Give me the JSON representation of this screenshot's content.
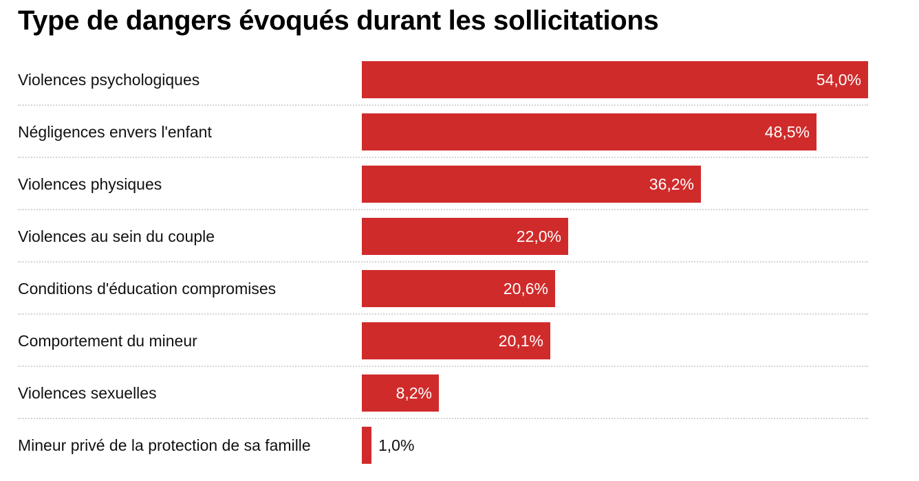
{
  "chart_data": {
    "type": "bar",
    "orientation": "horizontal",
    "title": "Type de dangers évoqués durant les sollicitations",
    "categories": [
      "Violences psychologiques",
      "Négligences envers l'enfant",
      "Violences physiques",
      "Violences au sein du couple",
      "Conditions d'éducation compromises",
      "Comportement du mineur",
      "Violences sexuelles",
      "Mineur privé de la protection de sa famille"
    ],
    "values": [
      54.0,
      48.5,
      36.2,
      22.0,
      20.6,
      20.1,
      8.2,
      1.0
    ],
    "value_labels": [
      "54,0%",
      "48,5%",
      "36,2%",
      "22,0%",
      "20,6%",
      "20,1%",
      "8,2%",
      "1,0%"
    ],
    "xlim": [
      0,
      54
    ],
    "bar_color": "#d02b2b",
    "grid": false
  }
}
